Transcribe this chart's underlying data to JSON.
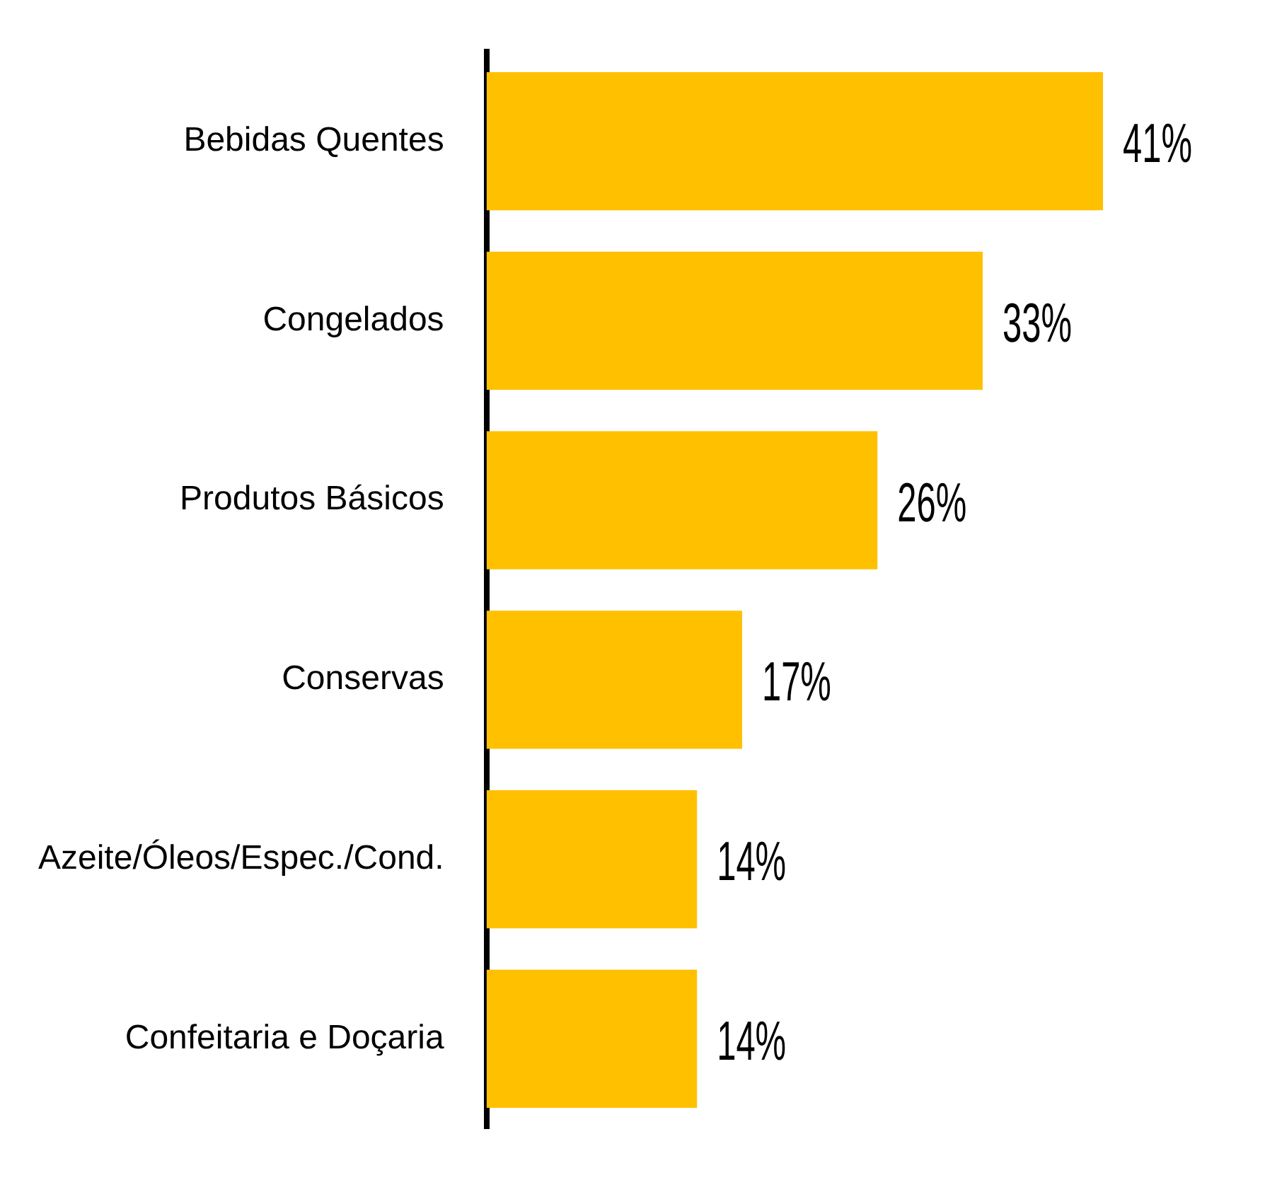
{
  "chart_data": {
    "type": "bar",
    "orientation": "horizontal",
    "categories": [
      "Bebidas Quentes",
      "Congelados",
      "Produtos Básicos",
      "Conservas",
      "Azeite/Óleos/Espec./Cond.",
      "Confeitaria e Doçaria"
    ],
    "values": [
      41,
      33,
      26,
      17,
      14,
      14
    ],
    "value_labels": [
      "41%",
      "33%",
      "26%",
      "17%",
      "14%",
      "14%"
    ],
    "color": "#ffc000",
    "grid": false,
    "legend": false,
    "tick_labels": "y"
  }
}
